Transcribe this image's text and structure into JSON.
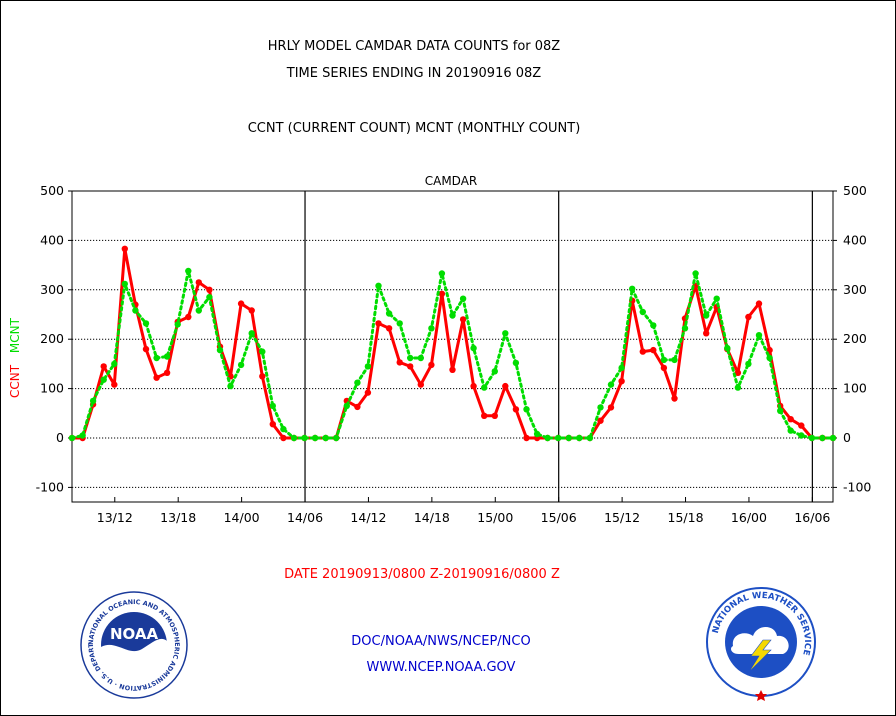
{
  "header": {
    "title_line1": "HRLY MODEL CAMDAR DATA COUNTS for 08Z",
    "title_line2": "TIME SERIES ENDING IN 20190916 08Z",
    "subtitle": "CCNT (CURRENT COUNT) MCNT (MONTHLY COUNT)"
  },
  "footer": {
    "date_range": "DATE 20190913/0800 Z-20190916/0800 Z",
    "org_path": "DOC/NOAA/NWS/NCEP/NCO",
    "website": "WWW.NCEP.NOAA.GOV"
  },
  "logos": {
    "noaa_text": "NOAA",
    "noaa_ring": "NATIONAL OCEANIC AND ATMOSPHERIC ADMINISTRATION · U.S. DEPARTMENT OF COMMERCE ·",
    "nws_ring": "NATIONAL WEATHER SERVICE"
  },
  "colors": {
    "ccnt": "#ff0000",
    "mcnt": "#00dd00",
    "panel_title": "#0000cc",
    "footer_date": "#ff0000",
    "footer_links": "#0000cc",
    "noaa_blue": "#1a3a9a",
    "nws_blue": "#1d4fc4"
  },
  "chart_data": {
    "type": "line",
    "title": "CAMDAR",
    "ylabel_left": [
      "CCNT",
      "MCNT"
    ],
    "ylim": [
      -125,
      500
    ],
    "yticks": [
      -100,
      0,
      100,
      200,
      300,
      400,
      500
    ],
    "grid": true,
    "x_tick_labels": [
      "13/12",
      "13/18",
      "14/00",
      "14/06",
      "14/12",
      "14/18",
      "15/00",
      "15/06",
      "15/12",
      "15/18",
      "16/00",
      "16/06"
    ],
    "x_tick_hours": [
      4,
      10,
      16,
      22,
      28,
      34,
      40,
      46,
      52,
      58,
      64,
      70
    ],
    "day_boundary_hours": [
      22,
      46,
      70
    ],
    "x_hours_range": [
      0,
      72
    ],
    "series": [
      {
        "name": "CCNT",
        "color": "#ff0000",
        "style": "solid",
        "values": [
          0,
          0,
          68,
          145,
          108,
          383,
          270,
          180,
          122,
          132,
          235,
          245,
          315,
          300,
          185,
          125,
          272,
          258,
          125,
          28,
          0,
          0,
          0,
          0,
          0,
          0,
          75,
          63,
          92,
          232,
          222,
          153,
          145,
          108,
          148,
          292,
          138,
          240,
          105,
          45,
          45,
          105,
          58,
          0,
          0,
          0,
          0,
          0,
          0,
          0,
          35,
          62,
          115,
          278,
          175,
          178,
          142,
          80,
          242,
          308,
          212,
          265,
          180,
          132,
          245,
          272,
          178,
          65,
          38,
          25,
          0,
          0,
          0
        ]
      },
      {
        "name": "MCNT",
        "color": "#00dd00",
        "style": "dotted",
        "values": [
          0,
          5,
          75,
          118,
          150,
          312,
          258,
          232,
          162,
          165,
          230,
          338,
          258,
          285,
          178,
          105,
          148,
          212,
          175,
          65,
          18,
          0,
          0,
          0,
          0,
          0,
          65,
          112,
          145,
          308,
          252,
          232,
          162,
          162,
          222,
          333,
          248,
          282,
          182,
          102,
          135,
          212,
          152,
          58,
          8,
          0,
          0,
          0,
          0,
          0,
          62,
          108,
          142,
          302,
          255,
          228,
          158,
          158,
          222,
          333,
          248,
          282,
          182,
          102,
          150,
          208,
          162,
          55,
          15,
          5,
          0,
          0,
          0
        ]
      }
    ]
  }
}
